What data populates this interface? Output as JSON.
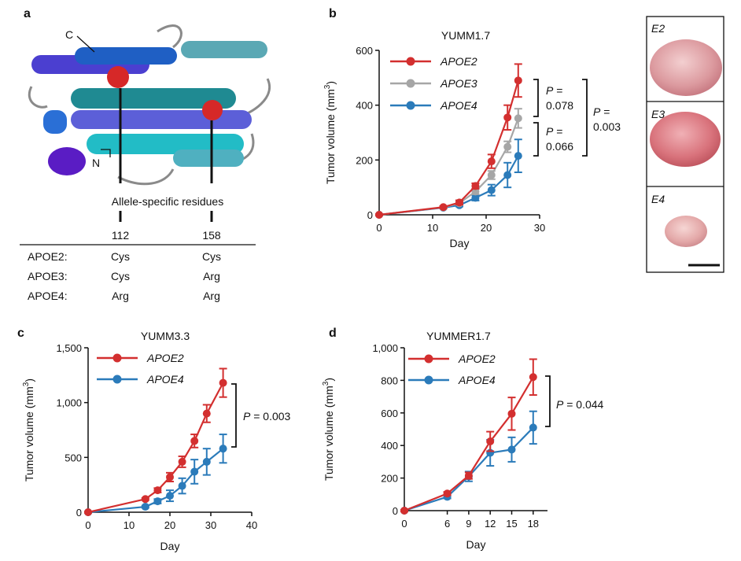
{
  "panel_labels": {
    "a": "a",
    "b": "b",
    "c": "c",
    "d": "d"
  },
  "panel_a": {
    "c_label": "C",
    "n_label": "N",
    "residue_caption": "Allele-specific residues",
    "positions": [
      "112",
      "158"
    ],
    "rows": [
      {
        "allele": "APOE2:",
        "r112": "Cys",
        "r158": "Cys",
        "color": "#d32f2f"
      },
      {
        "allele": "APOE3:",
        "r112": "Cys",
        "r158": "Arg",
        "color": "#a6a6a6"
      },
      {
        "allele": "APOE4:",
        "r112": "Arg",
        "r158": "Arg",
        "color": "#2b7bba"
      }
    ]
  },
  "tumor_photos": {
    "labels": [
      "E2",
      "E3",
      "E4"
    ]
  },
  "colors": {
    "APOE2": "#d32f2f",
    "APOE3": "#a6a6a6",
    "APOE4": "#2b7bba"
  },
  "chart_data": [
    {
      "type": "line",
      "title": "YUMM1.7",
      "xlabel": "Day",
      "ylabel": "Tumor volume (mm3)",
      "xlim": [
        0,
        30
      ],
      "ylim": [
        0,
        600
      ],
      "xticks": [
        "0",
        "10",
        "20",
        "30"
      ],
      "yticks": [
        "0",
        "200",
        "400",
        "600"
      ],
      "legend": "top-left",
      "series": [
        {
          "name": "APOE2",
          "x": [
            0,
            12,
            15,
            18,
            21,
            24,
            26
          ],
          "y": [
            0,
            28,
            45,
            105,
            195,
            355,
            490
          ],
          "err": [
            2,
            4,
            8,
            10,
            25,
            45,
            60
          ]
        },
        {
          "name": "APOE3",
          "x": [
            0,
            12,
            15,
            18,
            21,
            24,
            26
          ],
          "y": [
            0,
            27,
            42,
            85,
            145,
            248,
            352
          ],
          "err": [
            2,
            4,
            6,
            10,
            15,
            20,
            35
          ]
        },
        {
          "name": "APOE4",
          "x": [
            0,
            12,
            15,
            18,
            21,
            24,
            26
          ],
          "y": [
            0,
            26,
            35,
            62,
            90,
            145,
            215
          ],
          "err": [
            2,
            3,
            5,
            10,
            20,
            45,
            60
          ]
        }
      ],
      "annotations": [
        {
          "text": "P = 0.078",
          "lines": [
            "P =",
            "0.078"
          ]
        },
        {
          "text": "P = 0.066",
          "lines": [
            "P =",
            "0.066"
          ]
        },
        {
          "text": "P = 0.003",
          "lines": [
            "P =",
            "0.003"
          ]
        }
      ]
    },
    {
      "type": "line",
      "title": "YUMM3.3",
      "xlabel": "Day",
      "ylabel": "Tumor volume (mm3)",
      "xlim": [
        0,
        40
      ],
      "ylim": [
        0,
        1500
      ],
      "xticks": [
        "0",
        "10",
        "20",
        "30",
        "40"
      ],
      "yticks": [
        "0",
        "500",
        "1,000",
        "1,500"
      ],
      "legend": "top-left",
      "series": [
        {
          "name": "APOE2",
          "x": [
            0,
            14,
            17,
            20,
            23,
            26,
            29,
            33
          ],
          "y": [
            0,
            120,
            200,
            320,
            460,
            650,
            900,
            1180
          ],
          "err": [
            5,
            10,
            20,
            40,
            50,
            60,
            80,
            130
          ]
        },
        {
          "name": "APOE4",
          "x": [
            0,
            14,
            17,
            20,
            23,
            26,
            29,
            33
          ],
          "y": [
            0,
            50,
            100,
            150,
            240,
            370,
            460,
            580
          ],
          "err": [
            5,
            10,
            20,
            50,
            70,
            110,
            120,
            130
          ]
        }
      ],
      "annotations": [
        {
          "text": "P = 0.003",
          "lines": [
            "P = 0.003"
          ]
        }
      ]
    },
    {
      "type": "line",
      "title": "YUMMER1.7",
      "xlabel": "Day",
      "ylabel": "Tumor volume (mm3)",
      "xlim": [
        0,
        20
      ],
      "ylim": [
        0,
        1000
      ],
      "xticks": [
        "0",
        "6",
        "9",
        "12",
        "15",
        "18"
      ],
      "yticks": [
        "0",
        "200",
        "400",
        "600",
        "800",
        "1,000"
      ],
      "legend": "top-left",
      "series": [
        {
          "name": "APOE2",
          "x": [
            0,
            6,
            9,
            12,
            15,
            18
          ],
          "y": [
            0,
            105,
            215,
            425,
            595,
            820
          ],
          "err": [
            5,
            10,
            20,
            60,
            100,
            110
          ]
        },
        {
          "name": "APOE4",
          "x": [
            0,
            6,
            9,
            12,
            15,
            18
          ],
          "y": [
            0,
            85,
            210,
            355,
            375,
            510
          ],
          "err": [
            5,
            10,
            30,
            80,
            75,
            100
          ]
        }
      ],
      "annotations": [
        {
          "text": "P = 0.044",
          "lines": [
            "P = 0.044"
          ]
        }
      ]
    }
  ]
}
